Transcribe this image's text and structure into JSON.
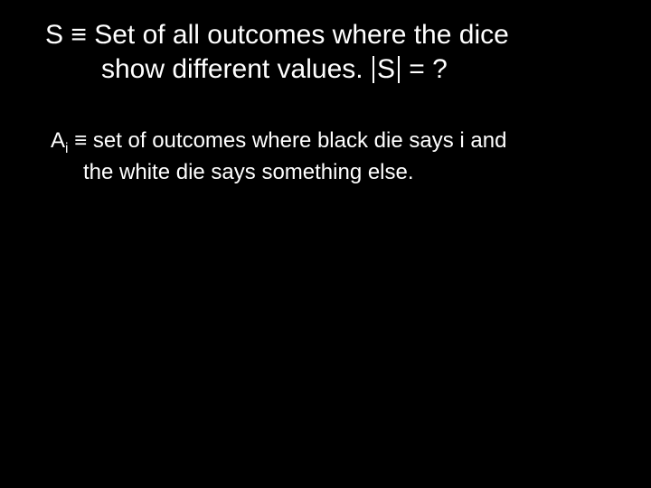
{
  "colors": {
    "background": "#000000",
    "text": "#ffffff"
  },
  "title": {
    "fontsize": 30,
    "line1_prefix": "S ",
    "line1_equiv": "≡",
    "line1_rest": " Set of all outcomes where the dice",
    "line2_prefix": "show different values. ",
    "line2_bar_inner": "S",
    "line2_suffix": " = ?"
  },
  "body": {
    "fontsize": 24,
    "line1_A": "A",
    "line1_sub": "i",
    "line1_space": " ",
    "line1_equiv": "≡",
    "line1_rest": " set of outcomes where black die says i and",
    "line2": "the white die says something else."
  }
}
